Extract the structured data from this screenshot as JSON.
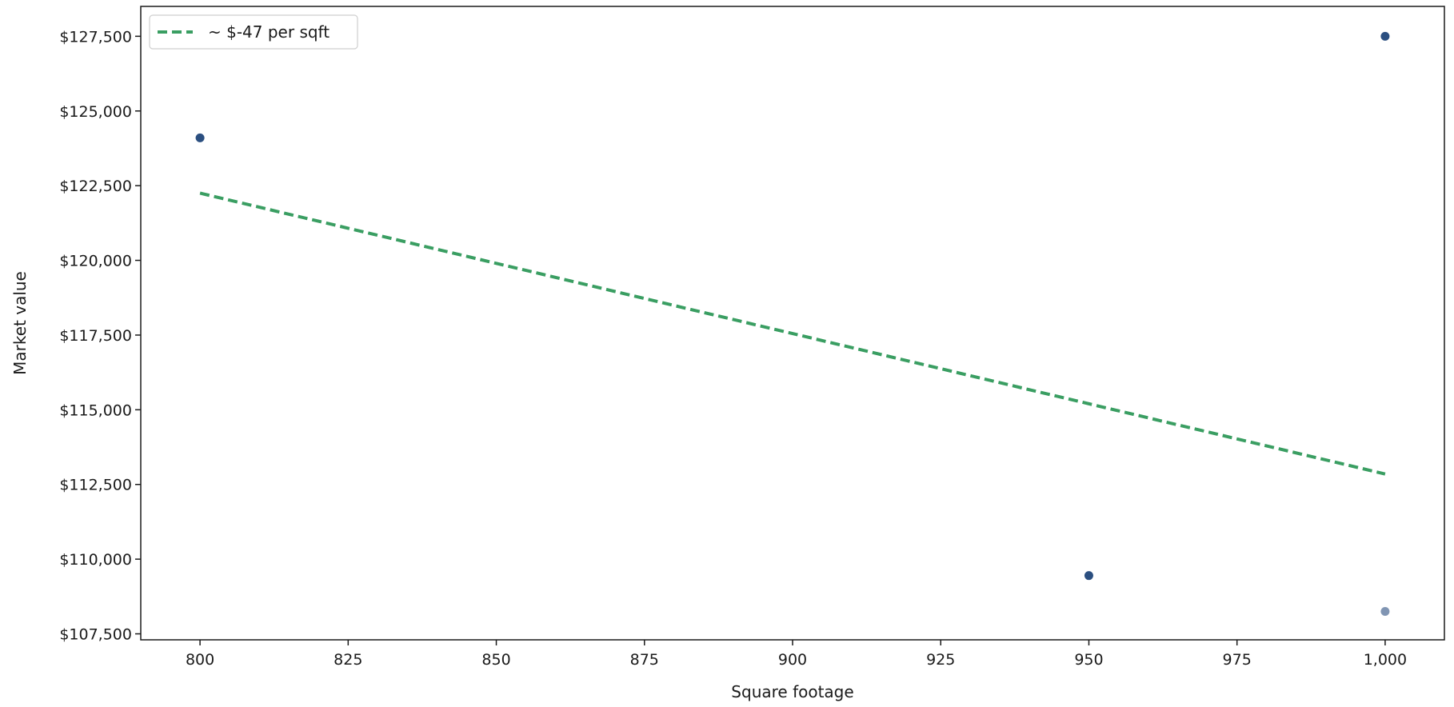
{
  "chart_data": {
    "type": "scatter",
    "title": "",
    "xlabel": "Square footage",
    "ylabel": "Market value",
    "xlim": [
      790,
      1010
    ],
    "ylim": [
      107300,
      128500
    ],
    "x_ticks": [
      800,
      825,
      850,
      875,
      900,
      925,
      950,
      975,
      1000
    ],
    "x_tick_labels": [
      "800",
      "825",
      "850",
      "875",
      "900",
      "925",
      "950",
      "975",
      "1,000"
    ],
    "y_ticks": [
      107500,
      110000,
      112500,
      115000,
      117500,
      120000,
      122500,
      125000,
      127500
    ],
    "y_tick_labels": [
      "$107,500",
      "$110,000",
      "$112,500",
      "$115,000",
      "$117,500",
      "$120,000",
      "$122,500",
      "$125,000",
      "$127,500"
    ],
    "grid": false,
    "legend_position": "top-left",
    "series": [
      {
        "kind": "scatter",
        "color": "#2b4f80",
        "points": [
          {
            "x": 800,
            "y": 124100,
            "alpha": 1.0
          },
          {
            "x": 950,
            "y": 109450,
            "alpha": 1.0
          },
          {
            "x": 1000,
            "y": 127500,
            "alpha": 1.0
          },
          {
            "x": 1000,
            "y": 108250,
            "alpha": 0.6
          }
        ]
      },
      {
        "kind": "line",
        "name": "~ $-47 per sqft",
        "color": "#3a9e62",
        "dashed": true,
        "points": [
          {
            "x": 800,
            "y": 122250
          },
          {
            "x": 1000,
            "y": 112850
          }
        ]
      }
    ]
  }
}
